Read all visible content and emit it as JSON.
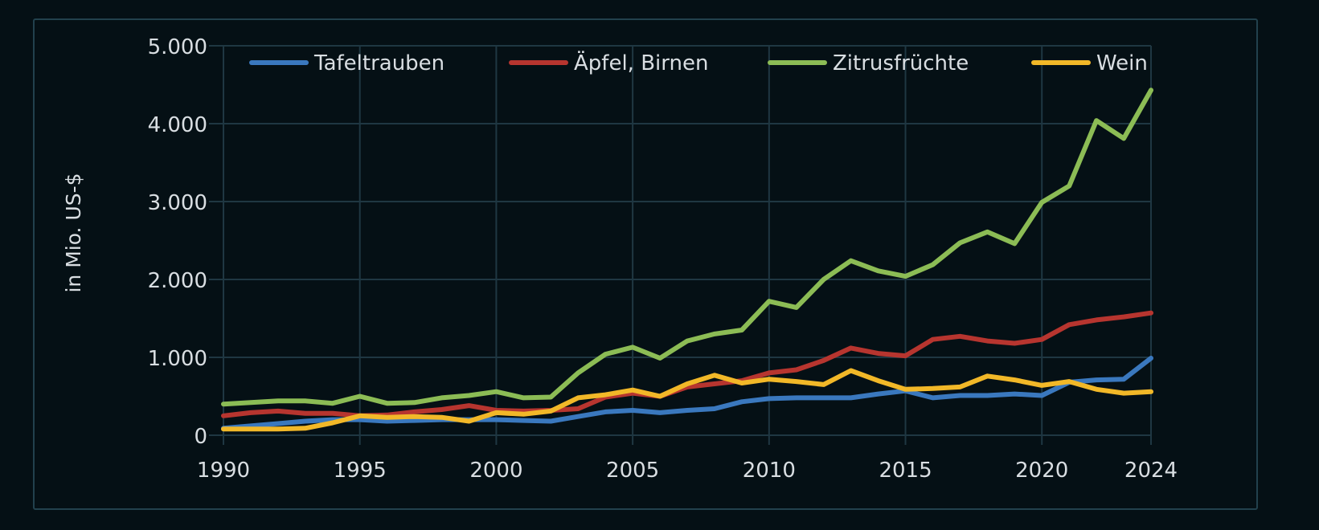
{
  "chart_data": {
    "type": "line",
    "title": "",
    "xlabel": "",
    "ylabel": "in Mio. US-$",
    "xlim": [
      1990,
      2024
    ],
    "ylim": [
      0,
      5000
    ],
    "x_ticks": [
      1990,
      1995,
      2000,
      2005,
      2010,
      2015,
      2020,
      2024
    ],
    "x_tick_labels": [
      "1990",
      "1995",
      "2000",
      "2005",
      "2010",
      "2015",
      "2020",
      "2024"
    ],
    "y_ticks": [
      0,
      1000,
      2000,
      3000,
      4000,
      5000
    ],
    "y_tick_labels": [
      "0",
      "1.000",
      "2.000",
      "3.000",
      "4.000",
      "5.000"
    ],
    "grid": true,
    "legend_position": "top",
    "x": [
      1990,
      1991,
      1992,
      1993,
      1994,
      1995,
      1996,
      1997,
      1998,
      1999,
      2000,
      2001,
      2002,
      2003,
      2004,
      2005,
      2006,
      2007,
      2008,
      2009,
      2010,
      2011,
      2012,
      2013,
      2014,
      2015,
      2016,
      2017,
      2018,
      2019,
      2020,
      2021,
      2022,
      2023,
      2024
    ],
    "series": [
      {
        "name": "Tafeltrauben",
        "color": "#3a78be",
        "values": [
          90,
          120,
          150,
          180,
          200,
          200,
          180,
          190,
          200,
          200,
          200,
          190,
          180,
          240,
          300,
          320,
          290,
          320,
          340,
          430,
          470,
          480,
          480,
          480,
          530,
          570,
          480,
          510,
          510,
          530,
          510,
          680,
          710,
          720,
          990
        ]
      },
      {
        "name": "Äpfel, Birnen",
        "color": "#b7352f",
        "values": [
          250,
          290,
          310,
          280,
          280,
          250,
          260,
          300,
          330,
          380,
          320,
          310,
          320,
          340,
          490,
          540,
          500,
          620,
          660,
          700,
          800,
          840,
          960,
          1120,
          1050,
          1020,
          1230,
          1270,
          1210,
          1180,
          1230,
          1420,
          1480,
          1520,
          1570
        ]
      },
      {
        "name": "Zitrusfrüchte",
        "color": "#8cbc55",
        "values": [
          400,
          420,
          440,
          440,
          410,
          500,
          410,
          420,
          480,
          510,
          560,
          480,
          490,
          800,
          1040,
          1130,
          990,
          1210,
          1300,
          1350,
          1720,
          1640,
          2000,
          2240,
          2110,
          2040,
          2190,
          2470,
          2610,
          2460,
          2990,
          3200,
          4040,
          3810,
          4430
        ]
      },
      {
        "name": "Wein",
        "color": "#f2b828",
        "values": [
          80,
          80,
          80,
          90,
          160,
          250,
          230,
          240,
          230,
          180,
          290,
          270,
          310,
          480,
          520,
          580,
          500,
          660,
          770,
          670,
          720,
          690,
          650,
          830,
          700,
          590,
          600,
          620,
          760,
          710,
          640,
          690,
          590,
          540,
          560
        ]
      }
    ]
  }
}
